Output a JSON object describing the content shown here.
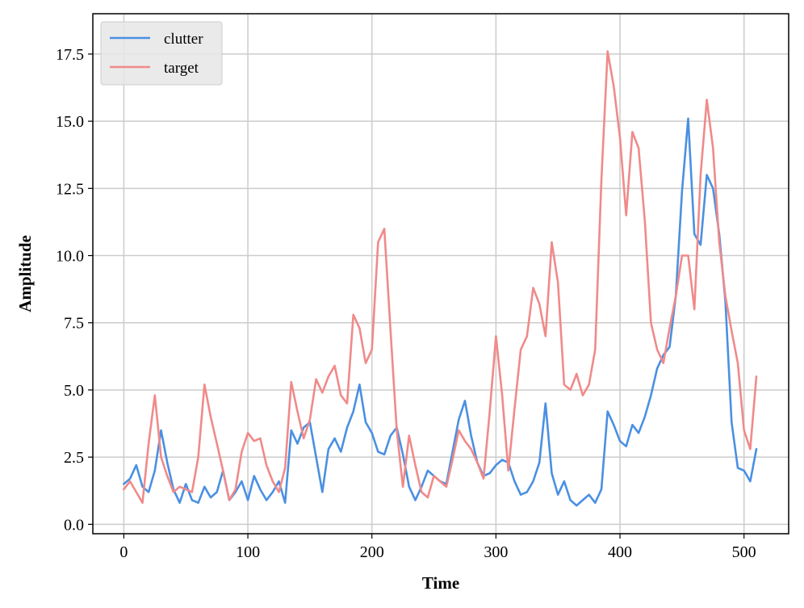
{
  "chart_data": {
    "type": "line",
    "title": "",
    "xlabel": "Time",
    "ylabel": "Amplitude",
    "xlim": [
      -25,
      536
    ],
    "ylim": [
      -0.35,
      19.0
    ],
    "xticks": [
      0,
      100,
      200,
      300,
      400,
      500
    ],
    "xtick_labels": [
      "0",
      "100",
      "200",
      "300",
      "400",
      "500"
    ],
    "yticks": [
      0.0,
      2.5,
      5.0,
      7.5,
      10.0,
      12.5,
      15.0,
      17.5
    ],
    "ytick_labels": [
      "0.0",
      "2.5",
      "5.0",
      "7.5",
      "10.0",
      "12.5",
      "15.0",
      "17.5"
    ],
    "grid": true,
    "legend_position": "top-left",
    "series": [
      {
        "name": "clutter",
        "color": "#4a90e2",
        "x": [
          0,
          5,
          10,
          15,
          20,
          25,
          30,
          35,
          40,
          45,
          50,
          55,
          60,
          65,
          70,
          75,
          80,
          85,
          90,
          95,
          100,
          105,
          110,
          115,
          120,
          125,
          130,
          135,
          140,
          145,
          150,
          155,
          160,
          165,
          170,
          175,
          180,
          185,
          190,
          195,
          200,
          205,
          210,
          215,
          220,
          225,
          230,
          235,
          240,
          245,
          250,
          255,
          260,
          265,
          270,
          275,
          280,
          285,
          290,
          295,
          300,
          305,
          310,
          315,
          320,
          325,
          330,
          335,
          340,
          345,
          350,
          355,
          360,
          365,
          370,
          375,
          380,
          385,
          390,
          395,
          400,
          405,
          410,
          415,
          420,
          425,
          430,
          435,
          440,
          445,
          450,
          455,
          460,
          465,
          470,
          475,
          480,
          485,
          490,
          495,
          500,
          505,
          510
        ],
        "y": [
          1.5,
          1.7,
          2.2,
          1.4,
          1.2,
          2.0,
          3.5,
          2.3,
          1.3,
          0.8,
          1.5,
          0.9,
          0.8,
          1.4,
          1.0,
          1.2,
          2.0,
          0.9,
          1.2,
          1.6,
          0.9,
          1.8,
          1.3,
          0.9,
          1.2,
          1.6,
          0.8,
          3.5,
          3.0,
          3.6,
          3.8,
          2.5,
          1.2,
          2.8,
          3.2,
          2.7,
          3.6,
          4.2,
          5.2,
          3.8,
          3.4,
          2.7,
          2.6,
          3.3,
          3.6,
          2.6,
          1.4,
          0.9,
          1.4,
          2.0,
          1.8,
          1.6,
          1.5,
          2.7,
          3.9,
          4.6,
          3.3,
          2.3,
          1.8,
          1.9,
          2.2,
          2.4,
          2.3,
          1.6,
          1.1,
          1.2,
          1.6,
          2.3,
          4.5,
          1.9,
          1.1,
          1.6,
          0.9,
          0.7,
          0.9,
          1.1,
          0.8,
          1.3,
          4.2,
          3.7,
          3.1,
          2.9,
          3.7,
          3.4,
          4.0,
          4.8,
          5.8,
          6.3,
          6.6,
          8.5,
          12.4,
          15.1,
          10.8,
          10.4,
          13.0,
          12.5,
          10.8,
          8.3,
          3.8,
          2.1,
          2.0,
          1.6,
          2.8
        ]
      },
      {
        "name": "target",
        "color": "#f08a8a",
        "x": [
          0,
          5,
          10,
          15,
          20,
          25,
          30,
          35,
          40,
          45,
          50,
          55,
          60,
          65,
          70,
          75,
          80,
          85,
          90,
          95,
          100,
          105,
          110,
          115,
          120,
          125,
          130,
          135,
          140,
          145,
          150,
          155,
          160,
          165,
          170,
          175,
          180,
          185,
          190,
          195,
          200,
          205,
          210,
          215,
          220,
          225,
          230,
          235,
          240,
          245,
          250,
          255,
          260,
          265,
          270,
          275,
          280,
          285,
          290,
          295,
          300,
          305,
          310,
          315,
          320,
          325,
          330,
          335,
          340,
          345,
          350,
          355,
          360,
          365,
          370,
          375,
          380,
          385,
          390,
          395,
          400,
          405,
          410,
          415,
          420,
          425,
          430,
          435,
          440,
          445,
          450,
          455,
          460,
          465,
          470,
          475,
          480,
          485,
          490,
          495,
          500,
          505,
          510
        ],
        "y": [
          1.3,
          1.6,
          1.2,
          0.8,
          3.0,
          4.8,
          2.5,
          1.8,
          1.2,
          1.4,
          1.3,
          1.2,
          2.5,
          5.2,
          4.0,
          3.0,
          2.0,
          0.9,
          1.3,
          2.7,
          3.4,
          3.1,
          3.2,
          2.2,
          1.6,
          1.2,
          2.1,
          5.3,
          4.2,
          3.2,
          3.9,
          5.4,
          4.9,
          5.5,
          5.9,
          4.8,
          4.5,
          7.8,
          7.3,
          6.0,
          6.5,
          10.5,
          11.0,
          7.2,
          3.5,
          1.4,
          3.3,
          2.2,
          1.2,
          1.0,
          1.8,
          1.6,
          1.4,
          2.4,
          3.5,
          3.1,
          2.8,
          2.3,
          1.7,
          4.2,
          7.0,
          4.8,
          2.0,
          4.3,
          6.5,
          7.0,
          8.8,
          8.2,
          7.0,
          10.5,
          9.0,
          5.2,
          5.0,
          5.6,
          4.8,
          5.2,
          6.5,
          12.8,
          17.6,
          16.3,
          14.4,
          11.5,
          14.6,
          14.0,
          11.3,
          7.5,
          6.5,
          6.0,
          7.3,
          8.5,
          10.0,
          10.0,
          8.0,
          13.0,
          15.8,
          14.0,
          10.5,
          8.5,
          7.2,
          6.0,
          3.5,
          2.8,
          5.5
        ]
      }
    ]
  }
}
